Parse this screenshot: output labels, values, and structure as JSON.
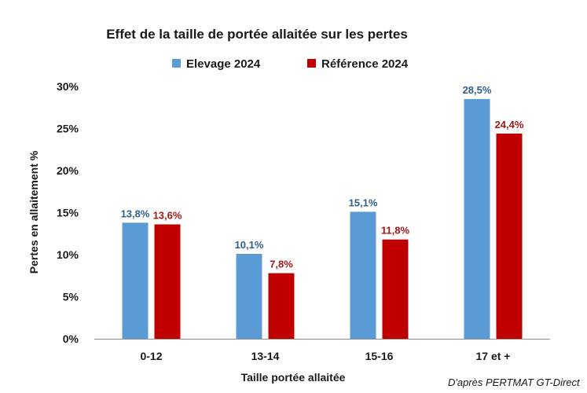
{
  "chart_data": {
    "type": "bar",
    "title": "Effet de la taille de portée allaitée sur les pertes",
    "xlabel": "Taille portée allaitée",
    "ylabel": "Pertes en allaitement  %",
    "categories": [
      "0-12",
      "13-14",
      "15-16",
      "17 et +"
    ],
    "series": [
      {
        "name": "Elevage 2024",
        "color": "#5B9BD5",
        "label_color": "#2E5F8A",
        "values": [
          13.8,
          10.1,
          15.1,
          28.5
        ],
        "labels": [
          "13,8%",
          "10,1%",
          "15,1%",
          "28,5%"
        ]
      },
      {
        "name": "Référence 2024",
        "color": "#C00000",
        "label_color": "#A31515",
        "values": [
          13.6,
          7.8,
          11.8,
          24.4
        ],
        "labels": [
          "13,6%",
          "7,8%",
          "11,8%",
          "24,4%"
        ]
      }
    ],
    "ylim": [
      0,
      30
    ],
    "yticks": [
      0,
      5,
      10,
      15,
      20,
      25,
      30
    ],
    "ytick_labels": [
      "0%",
      "5%",
      "10%",
      "15%",
      "20%",
      "25%",
      "30%"
    ],
    "grid": false,
    "legend": "top"
  },
  "source_note": "D'après PERTMAT GT-Direct"
}
